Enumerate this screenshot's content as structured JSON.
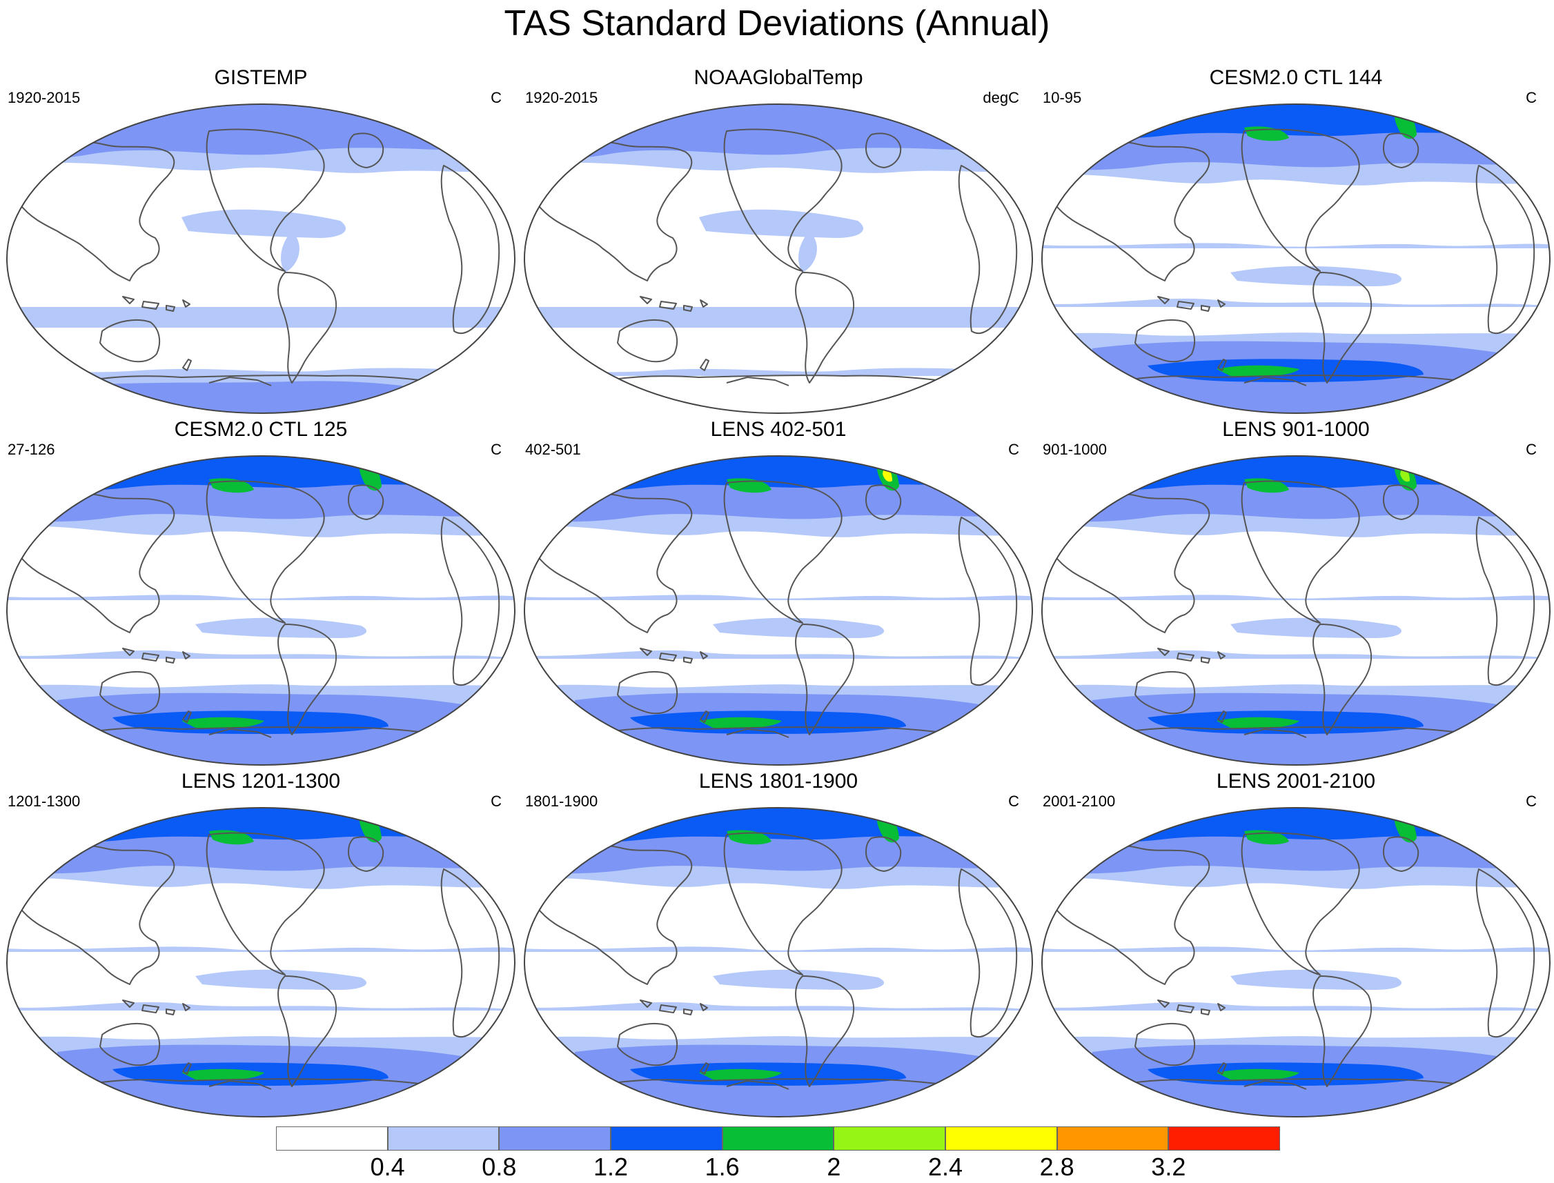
{
  "title": "TAS Standard Deviations (Annual)",
  "colorbar": {
    "colors": [
      "#ffffff",
      "#b4c8fa",
      "#7d96f5",
      "#0a5af5",
      "#08be37",
      "#96f514",
      "#ffff00",
      "#ff9600",
      "#ff1e00"
    ],
    "ticks": [
      "0.4",
      "0.8",
      "1.2",
      "1.6",
      "2",
      "2.4",
      "2.8",
      "3.2"
    ]
  },
  "panels": [
    {
      "title": "GISTEMP",
      "range": "1920-2015",
      "units": "C"
    },
    {
      "title": "NOAAGlobalTemp",
      "range": "1920-2015",
      "units": "degC"
    },
    {
      "title": "CESM2.0 CTL 144",
      "range": "10-95",
      "units": "C"
    },
    {
      "title": "CESM2.0 CTL 125",
      "range": "27-126",
      "units": "C"
    },
    {
      "title": "LENS 402-501",
      "range": "402-501",
      "units": "C"
    },
    {
      "title": "LENS 901-1000",
      "range": "901-1000",
      "units": "C"
    },
    {
      "title": "LENS 1201-1300",
      "range": "1201-1300",
      "units": "C"
    },
    {
      "title": "LENS 1801-1900",
      "range": "1801-1900",
      "units": "C"
    },
    {
      "title": "LENS 2001-2100",
      "range": "2001-2100",
      "units": "C"
    }
  ]
}
